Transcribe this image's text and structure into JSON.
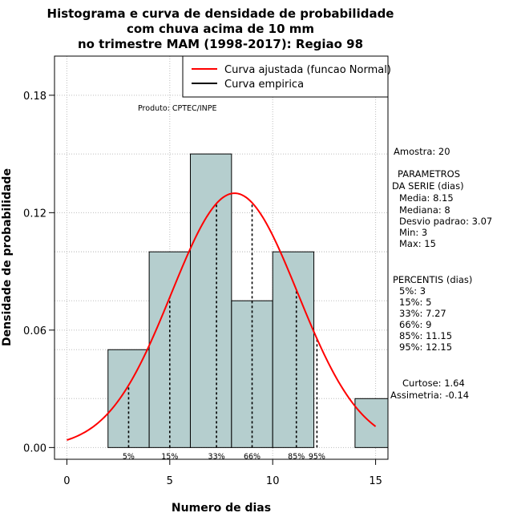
{
  "chart_data": {
    "type": "bar",
    "title_lines": [
      "Histograma e curva de densidade de probabilidade",
      "com chuva acima de 10 mm",
      "no trimestre MAM (1998-2017): Regiao 98"
    ],
    "xlabel": "Numero de dias",
    "ylabel": "Densidade de probabilidade",
    "xlim": [
      -0.6,
      15.6
    ],
    "ylim": [
      -0.006,
      0.2
    ],
    "x_ticks": [
      0,
      5,
      10,
      15
    ],
    "x_tick_labels": [
      "0",
      "5",
      "10",
      "15"
    ],
    "y_ticks": [
      0.0,
      0.06,
      0.12,
      0.18
    ],
    "y_tick_labels": [
      "0.00",
      "0.06",
      "0.12",
      "0.18"
    ],
    "grid": true,
    "bins": [
      {
        "x0": 2,
        "x1": 4,
        "density": 0.05
      },
      {
        "x0": 4,
        "x1": 6,
        "density": 0.1
      },
      {
        "x0": 6,
        "x1": 8,
        "density": 0.15
      },
      {
        "x0": 8,
        "x1": 10,
        "density": 0.075
      },
      {
        "x0": 10,
        "x1": 12,
        "density": 0.1
      },
      {
        "x0": 14,
        "x1": 16,
        "density": 0.025
      }
    ],
    "normal_fit": {
      "mean": 8.15,
      "sd": 3.07,
      "x_from": 0,
      "x_to": 15
    },
    "percentiles": [
      {
        "label": "5%",
        "x": 3
      },
      {
        "label": "15%",
        "x": 5
      },
      {
        "label": "33%",
        "x": 7.27
      },
      {
        "label": "66%",
        "x": 9
      },
      {
        "label": "85%",
        "x": 11.15
      },
      {
        "label": "95%",
        "x": 12.15
      }
    ],
    "legend": {
      "position": "top-right",
      "entries": [
        {
          "label": "Curva ajustada (funcao Normal)",
          "color": "#ff0000"
        },
        {
          "label": "Curva empirica",
          "color": "#000000"
        }
      ]
    },
    "annotation": "Produto: CPTEC/INPE",
    "bar_color": "#b5cece",
    "curve_color": "#ff0000"
  },
  "side_panel": {
    "amostra": "Amostra: 20",
    "parametros_lines": [
      "PARAMETROS",
      "DA SERIE (dias)",
      "Media: 8.15",
      "Mediana: 8",
      "Desvio padrao: 3.07",
      "Min: 3",
      "Max: 15"
    ],
    "percentis_lines": [
      "PERCENTIS (dias)",
      "5%: 3",
      "15%: 5",
      "33%: 7.27",
      "66%: 9",
      "85%: 11.15",
      "95%: 12.15"
    ],
    "curtose": "Curtose: 1.64",
    "assimetria": "Assimetria: -0.14"
  }
}
